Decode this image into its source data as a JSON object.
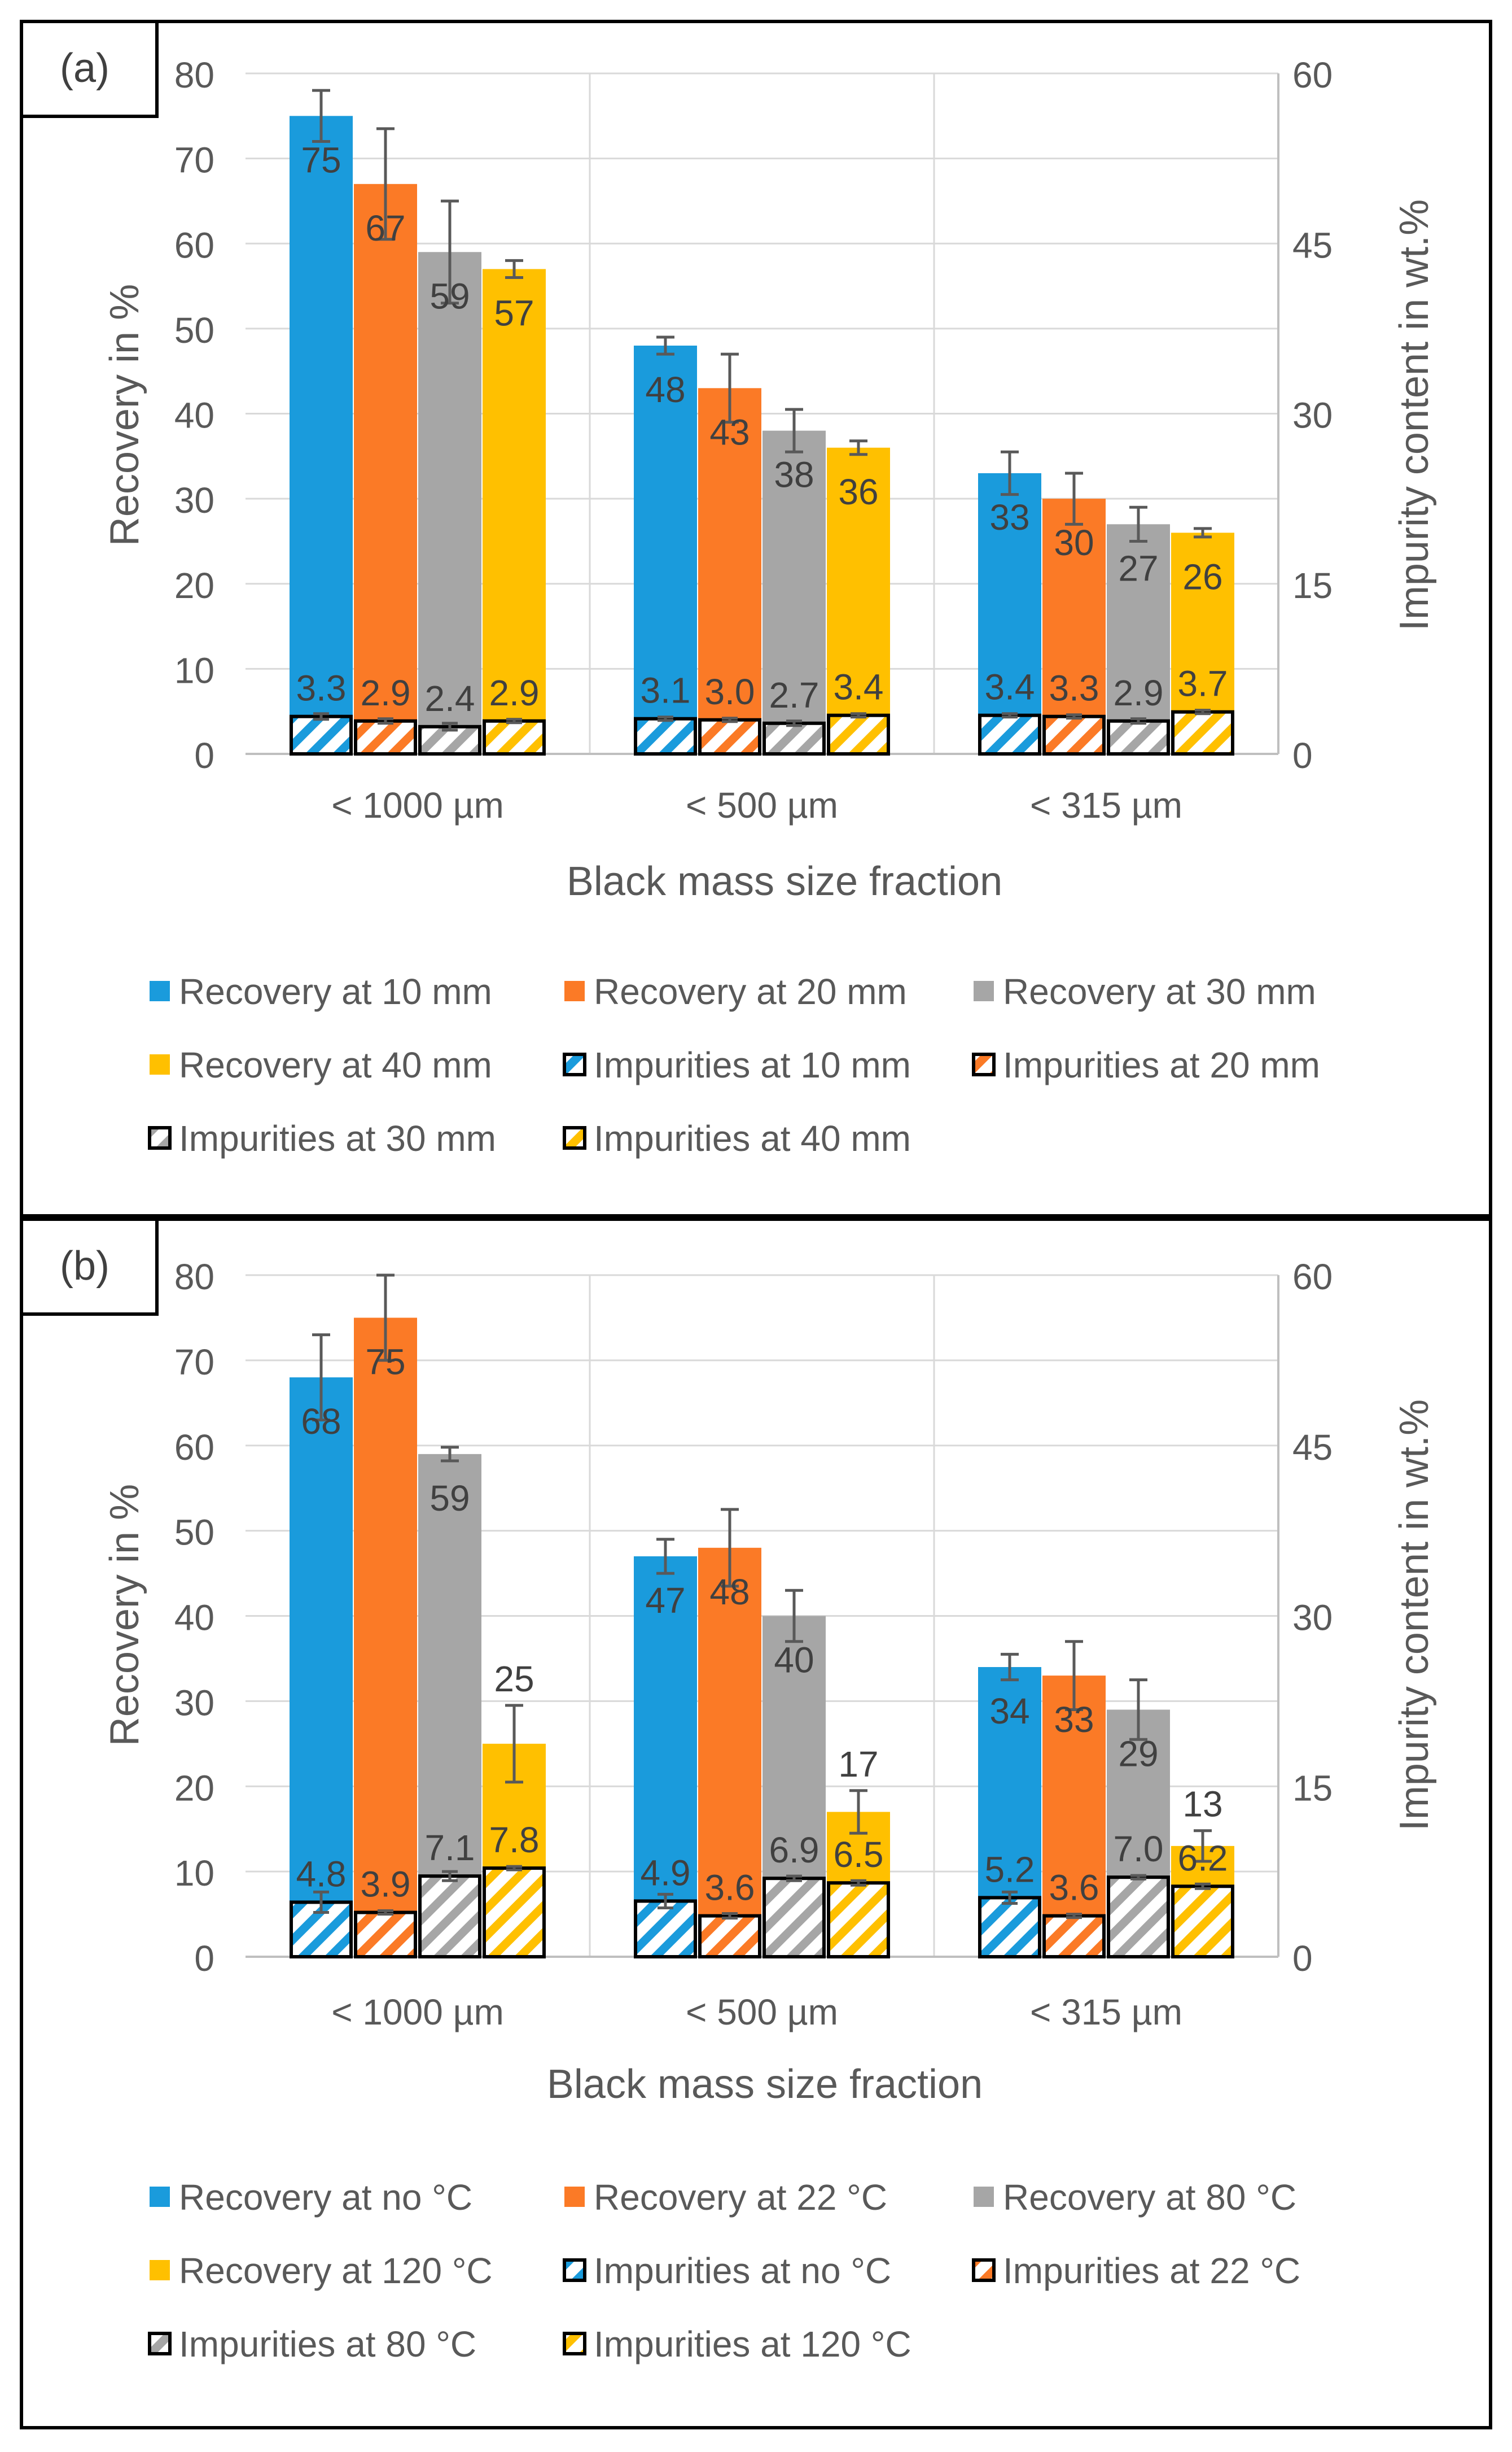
{
  "colors": {
    "blue": "#1a9bdc",
    "orange": "#fb7a26",
    "gray": "#a6a6a6",
    "yellow": "#ffc000",
    "text": "#595959",
    "grid": "#d9d9d9",
    "axis": "#bfbfbf",
    "border": "#000000",
    "error": "#595959"
  },
  "chart_data": [
    {
      "type": "bar",
      "panel_label": "(a)",
      "title": "",
      "categories": [
        "< 1000 µm",
        "< 500 µm",
        "< 315 µm"
      ],
      "xlabel": "Black mass size fraction",
      "ylabel": "Recovery in %",
      "y2label": "Impurity content in wt.%",
      "ylim": [
        0,
        80
      ],
      "yticks": [
        "0",
        "10",
        "20",
        "30",
        "40",
        "50",
        "60",
        "70",
        "80"
      ],
      "y2lim": [
        0,
        60
      ],
      "y2ticks": [
        "0",
        "15",
        "30",
        "45",
        "60"
      ],
      "recovery_series": [
        {
          "name": "Recovery at 10 mm",
          "color": "blue",
          "values": [
            75,
            48,
            33
          ],
          "labels": [
            "75",
            "48",
            "33"
          ],
          "errors": [
            3,
            1,
            2.5
          ]
        },
        {
          "name": "Recovery at 20 mm",
          "color": "orange",
          "values": [
            67,
            43,
            30
          ],
          "labels": [
            "67",
            "43",
            "30"
          ],
          "errors": [
            6.5,
            4,
            3
          ]
        },
        {
          "name": "Recovery at 30 mm",
          "color": "gray",
          "values": [
            59,
            38,
            27
          ],
          "labels": [
            "59",
            "38",
            "27"
          ],
          "errors": [
            6,
            2.5,
            2
          ]
        },
        {
          "name": "Recovery at 40 mm",
          "color": "yellow",
          "values": [
            57,
            36,
            26
          ],
          "labels": [
            "57",
            "36",
            "26"
          ],
          "errors": [
            1,
            0.8,
            0.5
          ]
        }
      ],
      "impurity_series": [
        {
          "name": "Impurities at 10 mm",
          "color": "blue",
          "values": [
            3.3,
            3.1,
            3.4
          ],
          "labels": [
            "3.3",
            "3.1",
            "3.4"
          ],
          "errors": [
            0.25,
            0.15,
            0.15
          ]
        },
        {
          "name": "Impurities at 20 mm",
          "color": "orange",
          "values": [
            2.9,
            3.0,
            3.3
          ],
          "labels": [
            "2.9",
            "3.0",
            "3.3"
          ],
          "errors": [
            0.2,
            0.15,
            0.15
          ]
        },
        {
          "name": "Impurities at 30 mm",
          "color": "gray",
          "values": [
            2.4,
            2.7,
            2.9
          ],
          "labels": [
            "2.4",
            "2.7",
            "2.9"
          ],
          "errors": [
            0.3,
            0.2,
            0.2
          ]
        },
        {
          "name": "Impurities at 40 mm",
          "color": "yellow",
          "values": [
            2.9,
            3.4,
            3.7
          ],
          "labels": [
            "2.9",
            "3.4",
            "3.7"
          ],
          "errors": [
            0.15,
            0.15,
            0.15
          ]
        }
      ]
    },
    {
      "type": "bar",
      "panel_label": "(b)",
      "title": "",
      "categories": [
        "< 1000 µm",
        "< 500 µm",
        "< 315 µm"
      ],
      "xlabel": "Black mass size fraction",
      "ylabel": "Recovery in %",
      "y2label": "Impurity content in wt.%",
      "ylim": [
        0,
        80
      ],
      "yticks": [
        "0",
        "10",
        "20",
        "30",
        "40",
        "50",
        "60",
        "70",
        "80"
      ],
      "y2lim": [
        0,
        60
      ],
      "y2ticks": [
        "0",
        "15",
        "30",
        "45",
        "60"
      ],
      "recovery_series": [
        {
          "name": "Recovery at no °C",
          "color": "blue",
          "values": [
            68,
            47,
            34
          ],
          "labels": [
            "68",
            "47",
            "34"
          ],
          "errors": [
            5,
            2,
            1.5
          ]
        },
        {
          "name": "Recovery at 22 °C",
          "color": "orange",
          "values": [
            75,
            48,
            33
          ],
          "labels": [
            "75",
            "48",
            "33"
          ],
          "errors": [
            5,
            4.5,
            4
          ]
        },
        {
          "name": "Recovery at 80 °C",
          "color": "gray",
          "values": [
            59,
            40,
            29
          ],
          "labels": [
            "59",
            "40",
            "29"
          ],
          "errors": [
            0.8,
            3,
            3.5
          ]
        },
        {
          "name": "Recovery at 120 °C",
          "color": "yellow",
          "values": [
            25,
            17,
            13
          ],
          "labels": [
            "25",
            "17",
            "13"
          ],
          "errors": [
            4.5,
            2.5,
            1.8
          ]
        }
      ],
      "impurity_series": [
        {
          "name": "Impurities at no °C",
          "color": "blue",
          "values": [
            4.8,
            4.9,
            5.2
          ],
          "labels": [
            "4.8",
            "4.9",
            "5.2"
          ],
          "errors": [
            0.9,
            0.6,
            0.5
          ]
        },
        {
          "name": "Impurities at 22 °C",
          "color": "orange",
          "values": [
            3.9,
            3.6,
            3.6
          ],
          "labels": [
            "3.9",
            "3.6",
            "3.6"
          ],
          "errors": [
            0.15,
            0.2,
            0.15
          ]
        },
        {
          "name": "Impurities at 80 °C",
          "color": "gray",
          "values": [
            7.1,
            6.9,
            7.0
          ],
          "labels": [
            "7.1",
            "6.9",
            "7.0"
          ],
          "errors": [
            0.4,
            0.2,
            0.15
          ]
        },
        {
          "name": "Impurities at 120 °C",
          "color": "yellow",
          "values": [
            7.8,
            6.5,
            6.2
          ],
          "labels": [
            "7.8",
            "6.5",
            "6.2"
          ],
          "errors": [
            0.15,
            0.2,
            0.2
          ]
        }
      ]
    }
  ]
}
